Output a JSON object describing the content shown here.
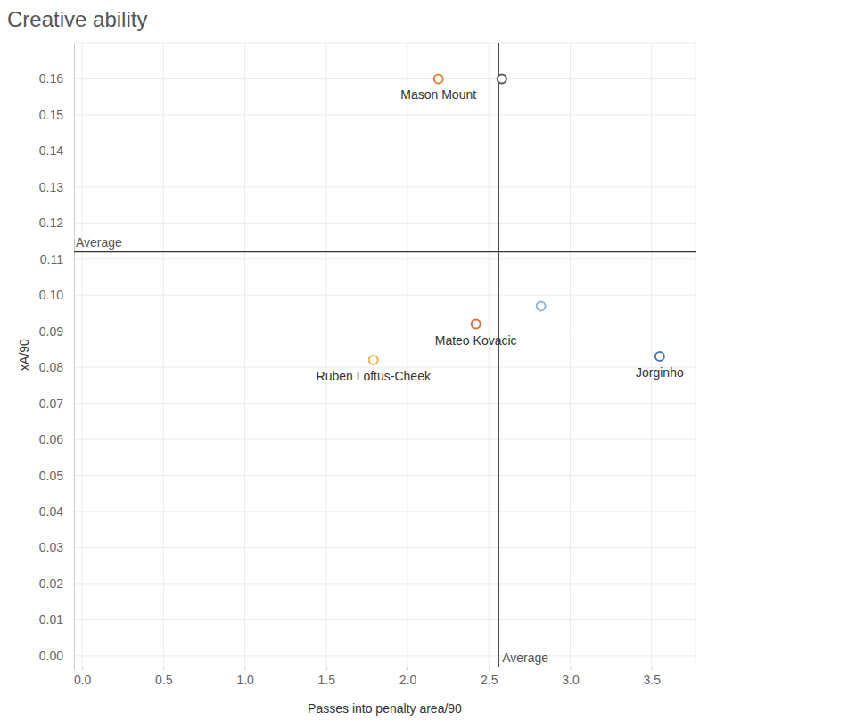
{
  "chart_data": {
    "type": "scatter",
    "title": "Creative ability",
    "x_label": "Passes into penalty area/90",
    "y_label": "xA/90",
    "x": [
      2.19,
      2.58,
      2.42,
      2.82,
      1.79,
      3.55
    ],
    "values": [
      0.16,
      0.16,
      0.092,
      0.097,
      0.082,
      0.083
    ],
    "labels": [
      "Mason Mount",
      null,
      "Mateo Kovacic",
      null,
      "Ruben Loftus-Cheek",
      "Jorginho"
    ],
    "colors": [
      "#e8803a",
      "#5a5a5a",
      "#e0703a",
      "#8fb5d6",
      "#f2b447",
      "#4a7bab"
    ],
    "marker": "circle-open",
    "grid": true,
    "xlim": [
      -0.05,
      3.77
    ],
    "ylim": [
      -0.003,
      0.17
    ],
    "xticks": [
      {
        "value": 0,
        "label": "0.0"
      },
      {
        "value": 0.5,
        "label": "0.5"
      },
      {
        "value": 1,
        "label": "1.0"
      },
      {
        "value": 1.5,
        "label": "1.5"
      },
      {
        "value": 2,
        "label": "2.0"
      },
      {
        "value": 2.5,
        "label": "2.5"
      },
      {
        "value": 3,
        "label": "3.0"
      },
      {
        "value": 3.5,
        "label": "3.5"
      }
    ],
    "yticks": [
      {
        "value": 0,
        "label": "0.00"
      },
      {
        "value": 0.01,
        "label": "0.01"
      },
      {
        "value": 0.02,
        "label": "0.02"
      },
      {
        "value": 0.03,
        "label": "0.03"
      },
      {
        "value": 0.04,
        "label": "0.04"
      },
      {
        "value": 0.05,
        "label": "0.05"
      },
      {
        "value": 0.06,
        "label": "0.06"
      },
      {
        "value": 0.07,
        "label": "0.07"
      },
      {
        "value": 0.08,
        "label": "0.08"
      },
      {
        "value": 0.09,
        "label": "0.09"
      },
      {
        "value": 0.1,
        "label": "0.10"
      },
      {
        "value": 0.11,
        "label": "0.11"
      },
      {
        "value": 0.12,
        "label": "0.12"
      },
      {
        "value": 0.13,
        "label": "0.13"
      },
      {
        "value": 0.14,
        "label": "0.14"
      },
      {
        "value": 0.15,
        "label": "0.15"
      },
      {
        "value": 0.16,
        "label": "0.16"
      }
    ],
    "reference_lines": [
      {
        "axis": "y",
        "value": 0.112,
        "label": "Average"
      },
      {
        "axis": "x",
        "value": 2.56,
        "label": "Average"
      }
    ]
  }
}
